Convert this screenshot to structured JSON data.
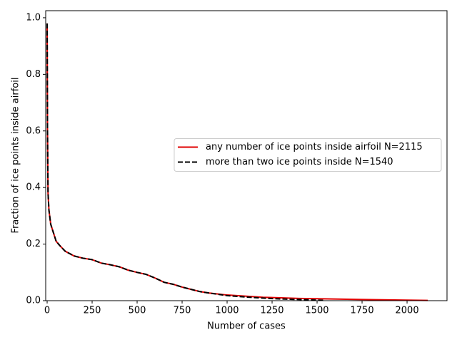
{
  "chart_data": {
    "type": "line",
    "xlabel": "Number of cases",
    "ylabel": "Fraction of ice points inside airfoil",
    "xlim": [
      -8,
      2222
    ],
    "ylim": [
      0,
      1.025
    ],
    "xticks": [
      0,
      250,
      500,
      750,
      1000,
      1250,
      1500,
      1750,
      2000
    ],
    "yticks": [
      {
        "value": 0,
        "label": "0.0"
      },
      {
        "value": 0.2,
        "label": "0.2"
      },
      {
        "value": 0.4,
        "label": "0.4"
      },
      {
        "value": 0.6,
        "label": "0.6"
      },
      {
        "value": 0.8,
        "label": "0.8"
      },
      {
        "value": 1.0,
        "label": "1.0"
      }
    ],
    "legend_position": "center right",
    "series": [
      {
        "name": "any number of ice points inside airfoil N=2115",
        "color": "#e00000",
        "dash": "solid",
        "x": [
          0,
          2,
          5,
          10,
          20,
          30,
          50,
          70,
          100,
          150,
          200,
          250,
          300,
          350,
          400,
          450,
          500,
          550,
          600,
          650,
          700,
          750,
          800,
          850,
          900,
          1000,
          1100,
          1200,
          1300,
          1400,
          1500,
          1750,
          2000,
          2115
        ],
        "values": [
          0.98,
          0.6,
          0.38,
          0.32,
          0.27,
          0.25,
          0.21,
          0.195,
          0.175,
          0.158,
          0.15,
          0.145,
          0.133,
          0.127,
          0.12,
          0.108,
          0.1,
          0.093,
          0.08,
          0.065,
          0.058,
          0.048,
          0.04,
          0.032,
          0.027,
          0.02,
          0.016,
          0.012,
          0.01,
          0.008,
          0.007,
          0.004,
          0.002,
          0.001
        ]
      },
      {
        "name": "more than two ice points inside N=1540",
        "color": "#000000",
        "dash": "dashed",
        "x": [
          0,
          2,
          5,
          10,
          20,
          30,
          50,
          70,
          100,
          150,
          200,
          250,
          300,
          350,
          400,
          450,
          500,
          550,
          600,
          650,
          700,
          750,
          800,
          850,
          900,
          1000,
          1100,
          1200,
          1300,
          1400,
          1500,
          1540
        ],
        "values": [
          0.98,
          0.6,
          0.38,
          0.32,
          0.27,
          0.25,
          0.21,
          0.195,
          0.175,
          0.158,
          0.15,
          0.145,
          0.133,
          0.127,
          0.12,
          0.108,
          0.1,
          0.093,
          0.08,
          0.065,
          0.058,
          0.048,
          0.04,
          0.032,
          0.027,
          0.018,
          0.013,
          0.009,
          0.006,
          0.004,
          0.002,
          0.001
        ]
      }
    ]
  }
}
